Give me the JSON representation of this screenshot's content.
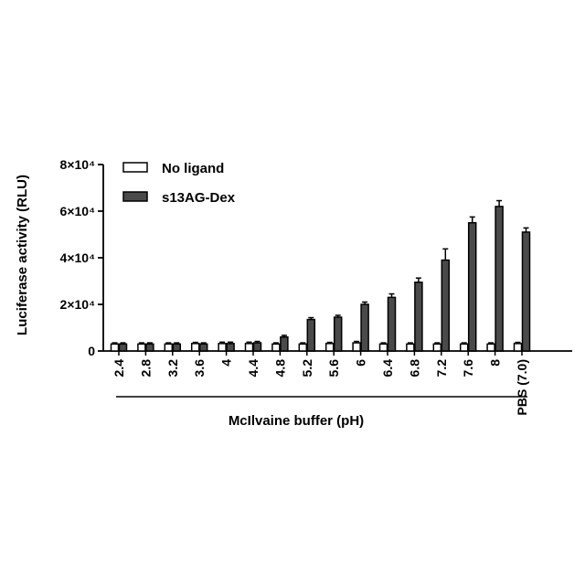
{
  "chart_data": {
    "type": "bar",
    "ylabel": "Luciferase activity (RLU)",
    "xlabel": "McIlvaine buffer (pH)",
    "categories": [
      "2.4",
      "2.8",
      "3.2",
      "3.6",
      "4",
      "4.4",
      "4.8",
      "5.2",
      "5.6",
      "6",
      "6.4",
      "6.8",
      "7.2",
      "7.6",
      "8",
      "PBS (7.0)"
    ],
    "ylim": [
      0,
      80000
    ],
    "yticks": [
      {
        "value": 0,
        "label": "0"
      },
      {
        "value": 20000,
        "label": "2×10⁴"
      },
      {
        "value": 40000,
        "label": "4×10⁴"
      },
      {
        "value": 60000,
        "label": "6×10⁴"
      },
      {
        "value": 80000,
        "label": "8×10⁴"
      }
    ],
    "series": [
      {
        "name": "No ligand",
        "color": "#ffffff",
        "values": [
          3000,
          3000,
          3000,
          3200,
          3200,
          3200,
          3000,
          3000,
          3200,
          3500,
          3000,
          3000,
          3000,
          3000,
          3000,
          3200
        ],
        "errors": [
          500,
          500,
          500,
          500,
          600,
          600,
          500,
          500,
          500,
          600,
          500,
          500,
          500,
          500,
          500,
          500
        ]
      },
      {
        "name": "s13AG-Dex",
        "color": "#4a4a4a",
        "values": [
          3000,
          3000,
          3000,
          3000,
          3200,
          3500,
          6000,
          13500,
          14500,
          20000,
          23000,
          29500,
          39000,
          55000,
          62000,
          51000
        ],
        "errors": [
          500,
          500,
          500,
          500,
          600,
          600,
          700,
          800,
          800,
          1000,
          1500,
          1800,
          4800,
          2500,
          2500,
          1800
        ]
      }
    ],
    "grid": false,
    "legend_position": "top-left"
  }
}
